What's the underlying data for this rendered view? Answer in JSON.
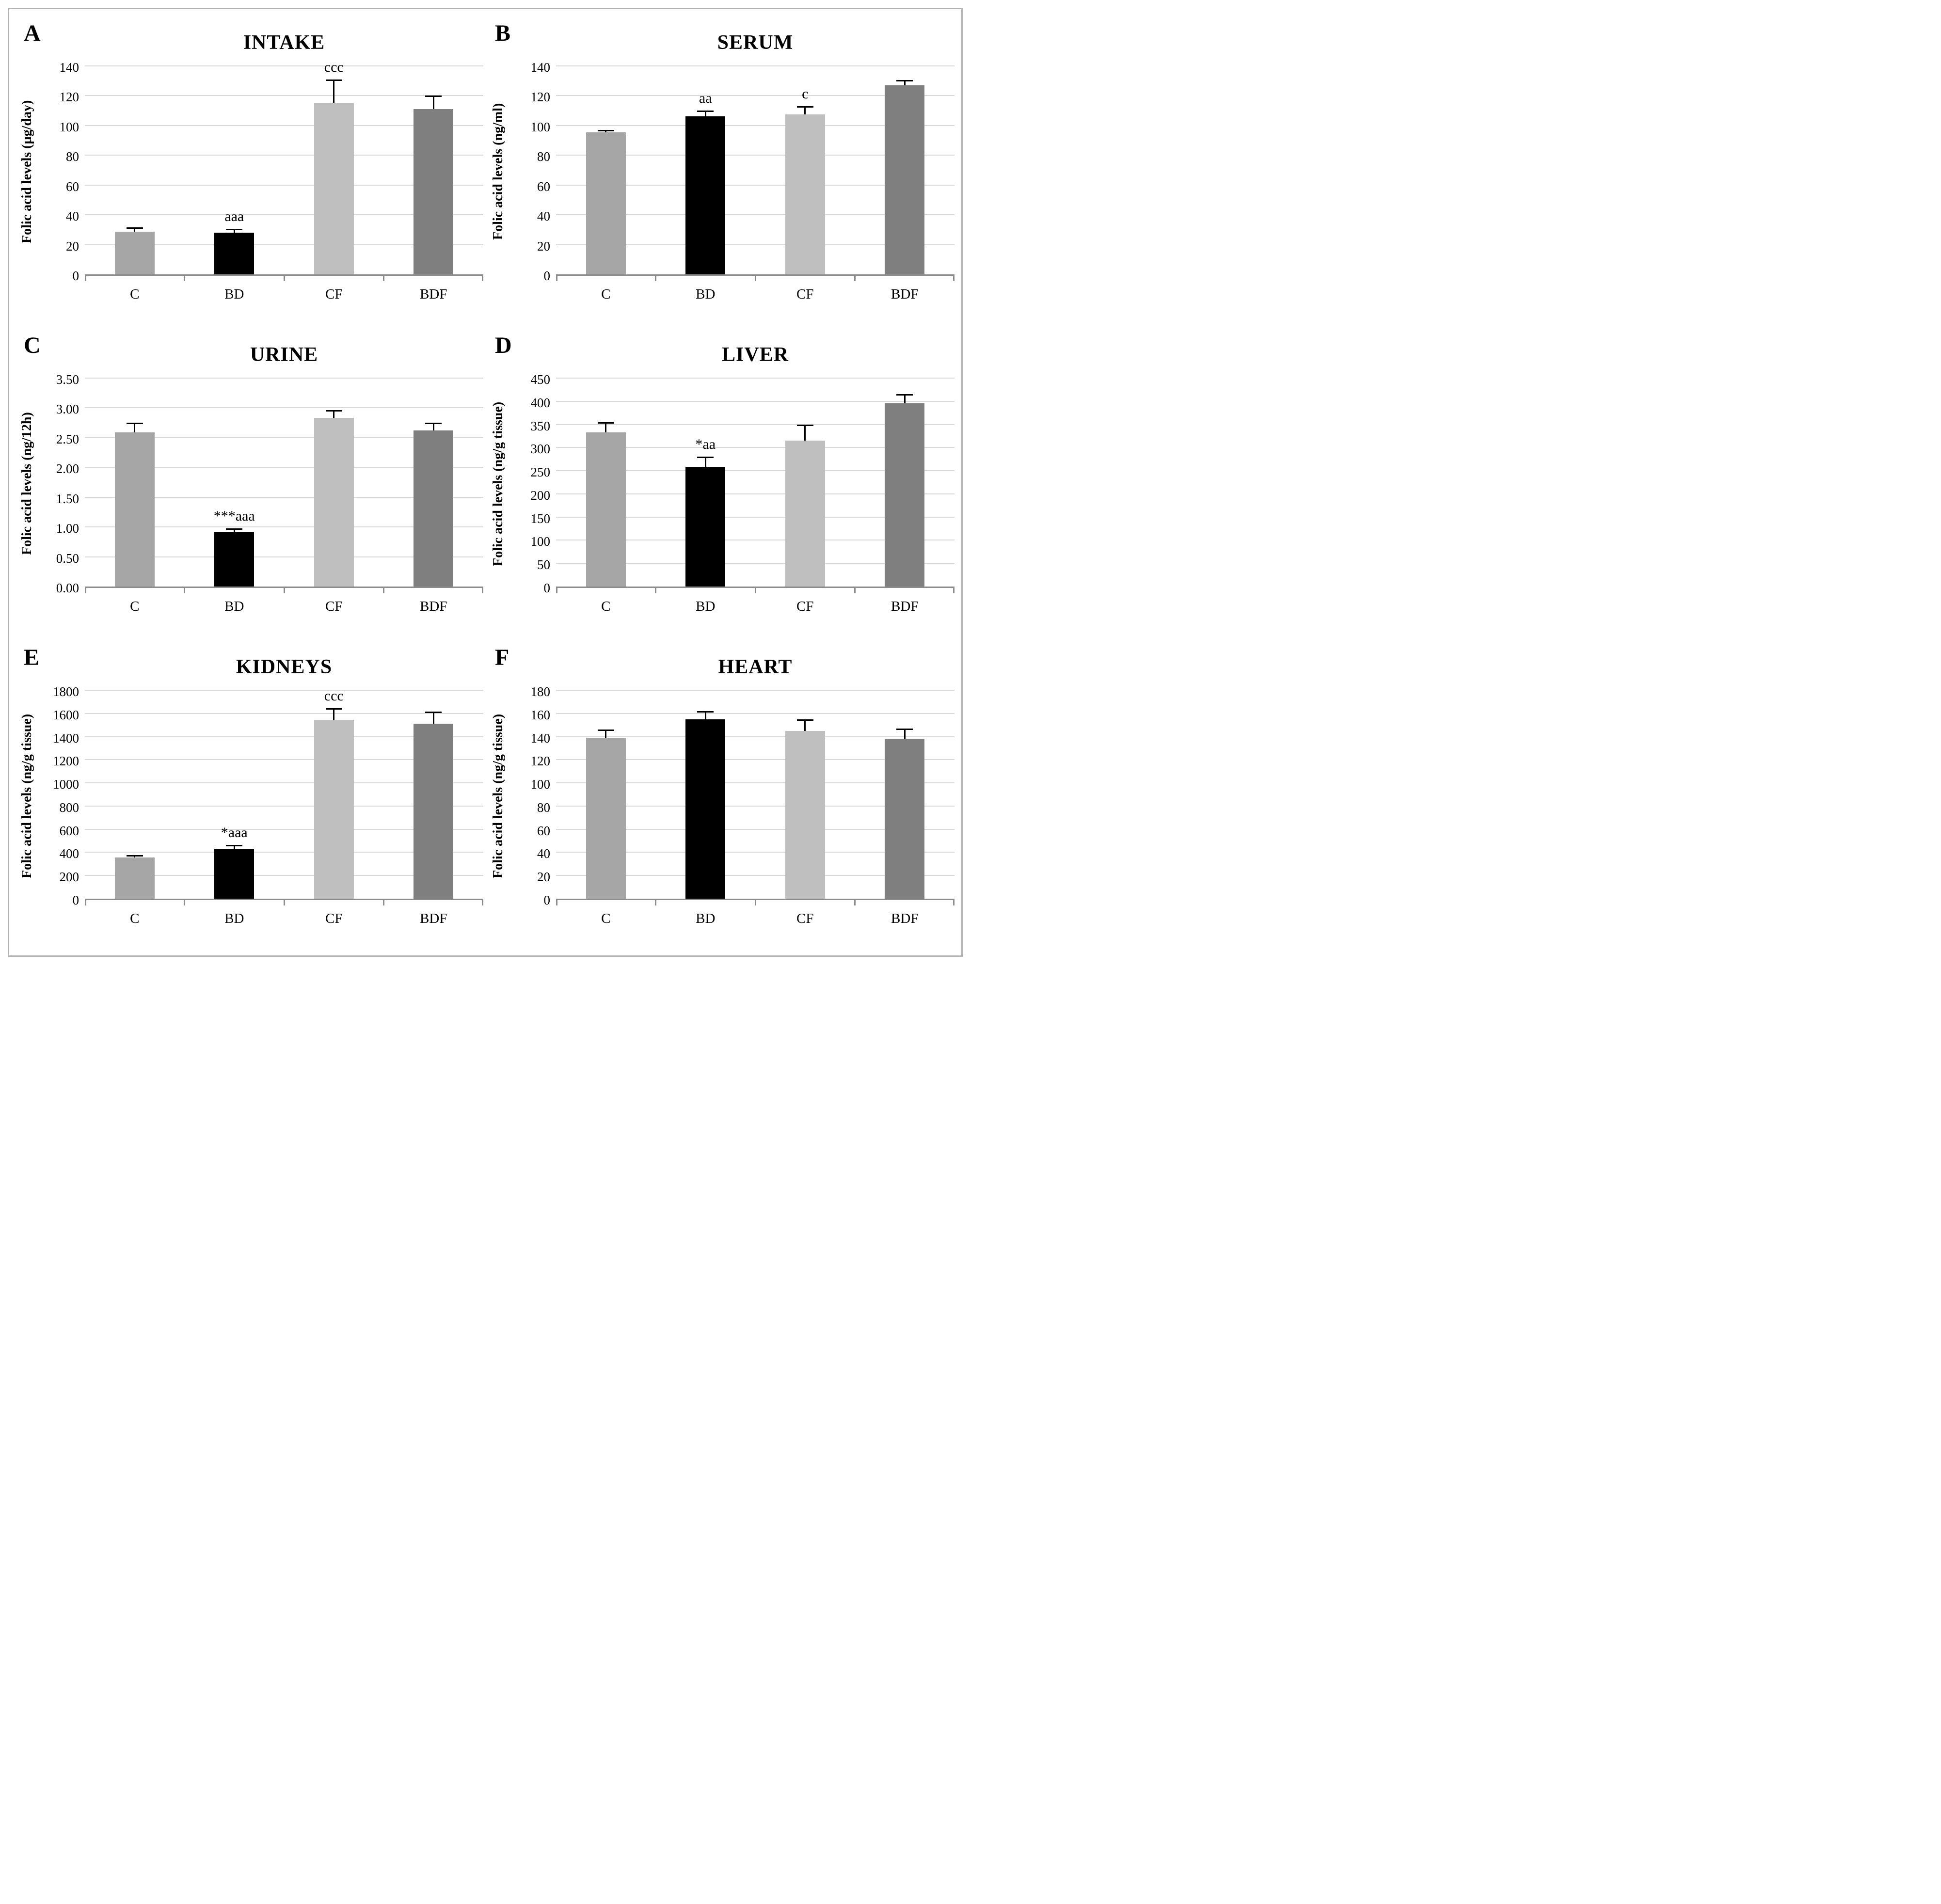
{
  "page": {
    "background": "#ffffff",
    "frame_border_color": "#b3b3b3"
  },
  "colors": {
    "gridline": "#d9d9d9",
    "axis_line": "#8c8c8c",
    "error_bar": "#000000",
    "bar_c": "#a6a6a6",
    "bar_bd": "#000000",
    "bar_cf": "#bfbfbf",
    "bar_bdf": "#7f7f7f"
  },
  "chart_data": [
    {
      "panel": "A",
      "type": "bar",
      "title": "INTAKE",
      "ylabel": "Folic acid levels (µg/day)",
      "xlabel": "",
      "categories": [
        "C",
        "BD",
        "CF",
        "BDF"
      ],
      "values": [
        28.5,
        28,
        115,
        111
      ],
      "errors": [
        3,
        2.5,
        16,
        9
      ],
      "annotations": [
        "",
        "aaa",
        "ccc",
        ""
      ],
      "bar_colors": [
        "#a6a6a6",
        "#000000",
        "#bfbfbf",
        "#7f7f7f"
      ],
      "ylim": [
        0,
        140
      ],
      "ytick_values": [
        0,
        20,
        40,
        60,
        80,
        100,
        120,
        140
      ],
      "ytick_labels": [
        "0",
        "20",
        "40",
        "60",
        "80",
        "100",
        "120",
        "140"
      ],
      "grid": true,
      "legend": null
    },
    {
      "panel": "B",
      "type": "bar",
      "title": "SERUM",
      "ylabel": "Folic acid levels (ng/ml)",
      "xlabel": "",
      "categories": [
        "C",
        "BD",
        "CF",
        "BDF"
      ],
      "values": [
        95.5,
        106,
        107.5,
        127
      ],
      "errors": [
        1.5,
        4,
        5.5,
        3.5
      ],
      "annotations": [
        "",
        "aa",
        "c",
        ""
      ],
      "bar_colors": [
        "#a6a6a6",
        "#000000",
        "#bfbfbf",
        "#7f7f7f"
      ],
      "ylim": [
        0,
        140
      ],
      "ytick_values": [
        0,
        20,
        40,
        60,
        80,
        100,
        120,
        140
      ],
      "ytick_labels": [
        "0",
        "20",
        "40",
        "60",
        "80",
        "100",
        "120",
        "140"
      ],
      "grid": true,
      "legend": null
    },
    {
      "panel": "C",
      "type": "bar",
      "title": "URINE",
      "ylabel": "Folic acid levels (ng/12h)",
      "xlabel": "",
      "categories": [
        "C",
        "BD",
        "CF",
        "BDF"
      ],
      "values": [
        2.59,
        0.91,
        2.83,
        2.62
      ],
      "errors": [
        0.16,
        0.07,
        0.13,
        0.13
      ],
      "annotations": [
        "",
        "***aaa",
        "",
        ""
      ],
      "bar_colors": [
        "#a6a6a6",
        "#000000",
        "#bfbfbf",
        "#7f7f7f"
      ],
      "ylim": [
        0,
        3.5
      ],
      "ytick_values": [
        0,
        0.5,
        1,
        1.5,
        2,
        2.5,
        3,
        3.5
      ],
      "ytick_labels": [
        "0.00",
        "0.50",
        "1.00",
        "1.50",
        "2.00",
        "2.50",
        "3.00",
        "3.50"
      ],
      "grid": true,
      "legend": null
    },
    {
      "panel": "D",
      "type": "bar",
      "title": "LIVER",
      "ylabel": "Folic acid levels (ng/g tissue)",
      "xlabel": "",
      "categories": [
        "C",
        "BD",
        "CF",
        "BDF"
      ],
      "values": [
        333,
        258,
        315,
        396
      ],
      "errors": [
        22,
        22,
        35,
        20
      ],
      "annotations": [
        "",
        "*aa",
        "",
        ""
      ],
      "bar_colors": [
        "#a6a6a6",
        "#000000",
        "#bfbfbf",
        "#7f7f7f"
      ],
      "ylim": [
        0,
        450
      ],
      "ytick_values": [
        0,
        50,
        100,
        150,
        200,
        250,
        300,
        350,
        400,
        450
      ],
      "ytick_labels": [
        "0",
        "50",
        "100",
        "150",
        "200",
        "250",
        "300",
        "350",
        "400",
        "450"
      ],
      "grid": true,
      "legend": null
    },
    {
      "panel": "E",
      "type": "bar",
      "title": "KIDNEYS",
      "ylabel": "Folic acid levels (ng/g tissue)",
      "xlabel": "",
      "categories": [
        "C",
        "BD",
        "CF",
        "BDF"
      ],
      "values": [
        355,
        430,
        1545,
        1510
      ],
      "errors": [
        22,
        35,
        100,
        105
      ],
      "annotations": [
        "",
        "*aaa",
        "ccc",
        ""
      ],
      "bar_colors": [
        "#a6a6a6",
        "#000000",
        "#bfbfbf",
        "#7f7f7f"
      ],
      "ylim": [
        0,
        1800
      ],
      "ytick_values": [
        0,
        200,
        400,
        600,
        800,
        1000,
        1200,
        1400,
        1600,
        1800
      ],
      "ytick_labels": [
        "0",
        "200",
        "400",
        "600",
        "800",
        "1000",
        "1200",
        "1400",
        "1600",
        "1800"
      ],
      "grid": true,
      "legend": null
    },
    {
      "panel": "F",
      "type": "bar",
      "title": "HEART",
      "ylabel": "Folic acid levels (ng/g tissue)",
      "xlabel": "",
      "categories": [
        "C",
        "BD",
        "CF",
        "BDF"
      ],
      "values": [
        139,
        155,
        145,
        138
      ],
      "errors": [
        7,
        7,
        10,
        9
      ],
      "annotations": [
        "",
        "",
        "",
        ""
      ],
      "bar_colors": [
        "#a6a6a6",
        "#000000",
        "#bfbfbf",
        "#7f7f7f"
      ],
      "ylim": [
        0,
        180
      ],
      "ytick_values": [
        0,
        20,
        40,
        60,
        80,
        100,
        120,
        140,
        160,
        180
      ],
      "ytick_labels": [
        "0",
        "20",
        "40",
        "60",
        "80",
        "100",
        "120",
        "140",
        "160",
        "180"
      ],
      "grid": true,
      "legend": null
    }
  ]
}
